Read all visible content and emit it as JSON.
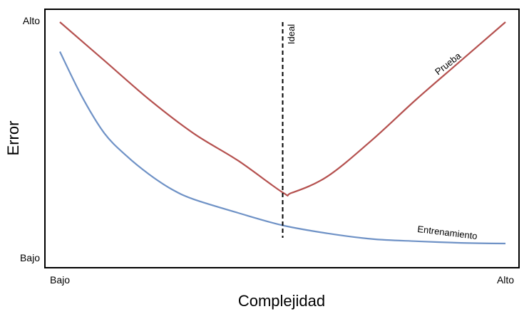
{
  "chart_data": {
    "type": "line",
    "title": "",
    "xlabel": "Complejidad",
    "ylabel": "Error",
    "x_ticks": [
      "Bajo",
      "Alto"
    ],
    "y_ticks": [
      "Alto",
      "Bajo"
    ],
    "xlim": [
      0,
      10
    ],
    "ylim": [
      0,
      10
    ],
    "grid": false,
    "series": [
      {
        "name": "Prueba",
        "color": "#b5514f",
        "x": [
          0,
          1,
          2,
          3,
          4,
          5,
          5.2,
          6,
          7,
          8,
          9,
          10
        ],
        "y": [
          10,
          8.3,
          6.6,
          5.1,
          3.9,
          2.5,
          2.48,
          3.2,
          4.8,
          6.6,
          8.3,
          10
        ]
      },
      {
        "name": "Entrenamiento",
        "color": "#6f92c6",
        "x": [
          0,
          0.5,
          1,
          1.5,
          2,
          2.5,
          3,
          4,
          5,
          6,
          7,
          8,
          9,
          10
        ],
        "y": [
          8.7,
          6.7,
          5.1,
          4.1,
          3.3,
          2.65,
          2.2,
          1.6,
          1.05,
          0.7,
          0.45,
          0.35,
          0.28,
          0.25
        ]
      }
    ],
    "vline": {
      "x": 5,
      "label": "Ideal",
      "color": "#000000"
    }
  }
}
